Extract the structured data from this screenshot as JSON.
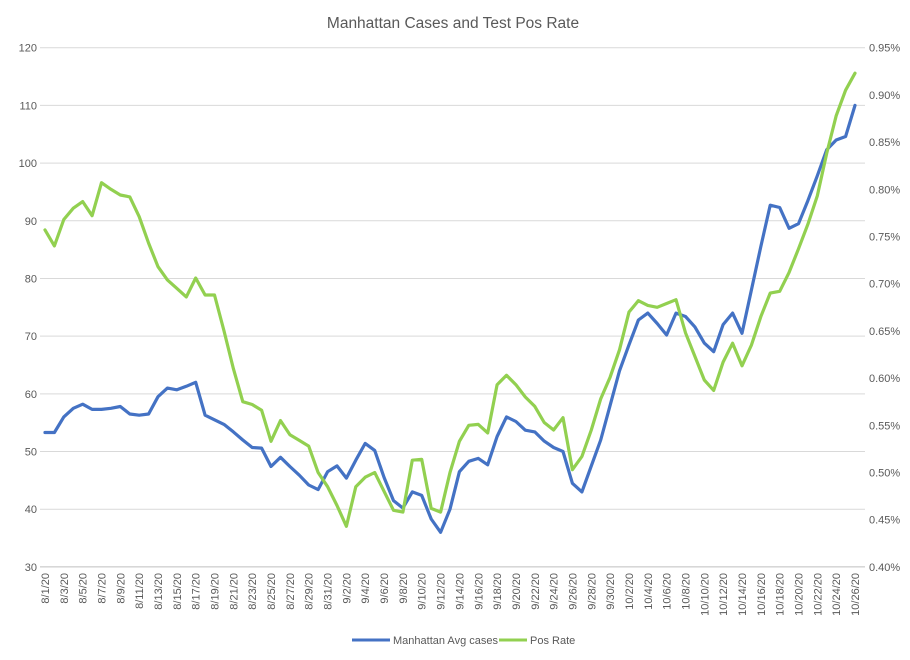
{
  "page": {
    "background": "#FFFFFF"
  },
  "chart_data": {
    "type": "line",
    "title": "Manhattan  Cases and Test Pos Rate",
    "title_color": "#595959",
    "axis_text_color": "#595959",
    "gridline_color": "#D9D9D9",
    "axis_line_color": "#BFBFBF",
    "legend_position": "bottom",
    "x_tick_every": 2,
    "left_axis": {
      "min": 30,
      "max": 120,
      "step": 10
    },
    "right_axis": {
      "min": 0.4,
      "max": 0.95,
      "step": 0.05,
      "format": "percent2"
    },
    "x": [
      "8/1/20",
      "8/2/20",
      "8/3/20",
      "8/4/20",
      "8/5/20",
      "8/6/20",
      "8/7/20",
      "8/8/20",
      "8/9/20",
      "8/10/20",
      "8/11/20",
      "8/12/20",
      "8/13/20",
      "8/14/20",
      "8/15/20",
      "8/16/20",
      "8/17/20",
      "8/18/20",
      "8/19/20",
      "8/20/20",
      "8/21/20",
      "8/22/20",
      "8/23/20",
      "8/24/20",
      "8/25/20",
      "8/26/20",
      "8/27/20",
      "8/28/20",
      "8/29/20",
      "8/30/20",
      "8/31/20",
      "9/1/20",
      "9/2/20",
      "9/3/20",
      "9/4/20",
      "9/5/20",
      "9/6/20",
      "9/7/20",
      "9/8/20",
      "9/9/20",
      "9/10/20",
      "9/11/20",
      "9/12/20",
      "9/13/20",
      "9/14/20",
      "9/15/20",
      "9/16/20",
      "9/17/20",
      "9/18/20",
      "9/19/20",
      "9/20/20",
      "9/21/20",
      "9/22/20",
      "9/23/20",
      "9/24/20",
      "9/25/20",
      "9/26/20",
      "9/27/20",
      "9/28/20",
      "9/29/20",
      "9/30/20",
      "10/1/20",
      "10/2/20",
      "10/3/20",
      "10/4/20",
      "10/5/20",
      "10/6/20",
      "10/7/20",
      "10/8/20",
      "10/9/20",
      "10/10/20",
      "10/11/20",
      "10/12/20",
      "10/13/20",
      "10/14/20",
      "10/15/20",
      "10/16/20",
      "10/17/20",
      "10/18/20",
      "10/19/20",
      "10/20/20",
      "10/21/20",
      "10/22/20",
      "10/23/20",
      "10/24/20",
      "10/25/20",
      "10/26/20"
    ],
    "series": [
      {
        "name": "Manhattan Avg cases",
        "axis": "left",
        "color": "#4472C4",
        "values": [
          53.3,
          53.3,
          56,
          57.5,
          58.2,
          57.3,
          57.3,
          57.5,
          57.8,
          56.5,
          56.3,
          56.5,
          59.5,
          61,
          60.7,
          61.3,
          62,
          56.3,
          55.5,
          54.7,
          53.4,
          52,
          50.7,
          50.6,
          47.4,
          49,
          47.4,
          45.9,
          44.2,
          43.4,
          46.5,
          47.5,
          45.4,
          48.5,
          51.4,
          50.2,
          45.5,
          41.5,
          40.2,
          43,
          42.4,
          38.3,
          36,
          40,
          46.5,
          48.3,
          48.8,
          47.7,
          52.6,
          56,
          55.2,
          53.7,
          53.4,
          51.8,
          50.7,
          50,
          44.5,
          43,
          47.5,
          52,
          58,
          64,
          68.5,
          72.8,
          74,
          72.2,
          70.2,
          74,
          73.4,
          71.6,
          68.8,
          67.3,
          72,
          74,
          70.5,
          78,
          85.5,
          92.7,
          92.3,
          88.7,
          89.5,
          93.5,
          97.8,
          102.3,
          104,
          104.6,
          110
        ]
      },
      {
        "name": "Pos Rate",
        "axis": "right",
        "color": "#92D050",
        "values": [
          0.757,
          0.74,
          0.768,
          0.78,
          0.787,
          0.772,
          0.807,
          0.8,
          0.794,
          0.792,
          0.771,
          0.743,
          0.718,
          0.704,
          0.695,
          0.686,
          0.706,
          0.688,
          0.688,
          0.65,
          0.61,
          0.575,
          0.572,
          0.566,
          0.533,
          0.555,
          0.54,
          0.534,
          0.528,
          0.5,
          0.485,
          0.465,
          0.443,
          0.485,
          0.495,
          0.5,
          0.48,
          0.46,
          0.458,
          0.513,
          0.514,
          0.462,
          0.458,
          0.5,
          0.533,
          0.55,
          0.551,
          0.542,
          0.593,
          0.603,
          0.593,
          0.58,
          0.57,
          0.553,
          0.545,
          0.558,
          0.503,
          0.517,
          0.545,
          0.578,
          0.601,
          0.63,
          0.67,
          0.682,
          0.677,
          0.675,
          0.679,
          0.683,
          0.648,
          0.623,
          0.598,
          0.587,
          0.617,
          0.637,
          0.613,
          0.635,
          0.665,
          0.69,
          0.692,
          0.712,
          0.737,
          0.763,
          0.793,
          0.838,
          0.878,
          0.905,
          0.923
        ]
      }
    ]
  }
}
